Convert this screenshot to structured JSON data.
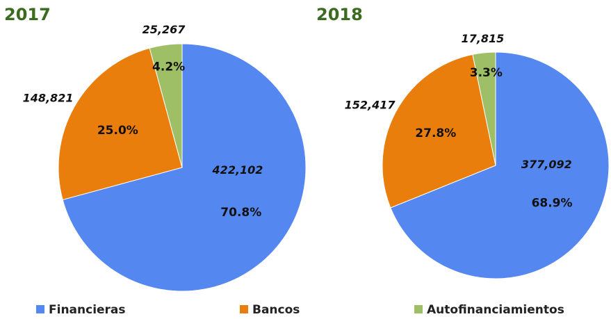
{
  "chart_data": [
    {
      "type": "pie",
      "title": "2017",
      "categories": [
        "Financieras",
        "Bancos",
        "Autofinanciamientos"
      ],
      "values": [
        422102,
        148821,
        25267
      ],
      "value_labels": [
        "422,102",
        "148,821",
        "25,267"
      ],
      "shares": [
        70.8,
        25.0,
        4.2
      ],
      "share_labels": [
        "70.8%",
        "25.0%",
        "4.2%"
      ],
      "colors": [
        "#5587f0",
        "#ea7e0c",
        "#9ebf66"
      ]
    },
    {
      "type": "pie",
      "title": "2018",
      "categories": [
        "Financieras",
        "Bancos",
        "Autofinanciamientos"
      ],
      "values": [
        377092,
        152417,
        17815
      ],
      "value_labels": [
        "377,092",
        "152,417",
        "17,815"
      ],
      "shares": [
        68.9,
        27.8,
        3.3
      ],
      "share_labels": [
        "68.9%",
        "27.8%",
        "3.3%"
      ],
      "colors": [
        "#5587f0",
        "#ea7e0c",
        "#9ebf66"
      ]
    }
  ]
}
